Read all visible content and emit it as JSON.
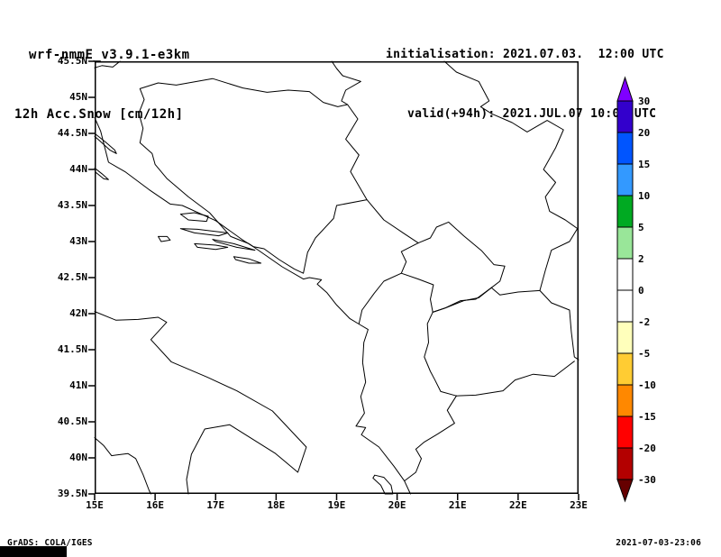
{
  "header": {
    "model": "wrf-nmmE_v3.9.1-e3km",
    "field": "12h Acc.Snow [cm/12h]",
    "init": "initialisation: 2021.07.03.  12:00 UTC",
    "valid": "valid(+94h): 2021.JUL.07 10:00 UTC"
  },
  "footer": {
    "credit": "GrADS: COLA/IGES",
    "timestamp": "2021-07-03-23:06"
  },
  "chart_data": {
    "type": "map",
    "title": "12h Acc.Snow [cm/12h]",
    "field_note": "No snow accumulation anywhere in domain; map area is blank (0 cm/12h) with coastlines and country borders only",
    "lon_range": [
      15,
      23
    ],
    "lat_range": [
      39.5,
      45.5
    ],
    "lat_ticks": [
      "45.5N",
      "45N",
      "44.5N",
      "44N",
      "43.5N",
      "43N",
      "42.5N",
      "42N",
      "41.5N",
      "41N",
      "40.5N",
      "40N",
      "39.5N"
    ],
    "lon_ticks": [
      "15E",
      "16E",
      "17E",
      "18E",
      "19E",
      "20E",
      "21E",
      "22E",
      "23E"
    ],
    "colorbar": {
      "labels": [
        "30",
        "20",
        "15",
        "10",
        "5",
        "2",
        "0",
        "-2",
        "-5",
        "-10",
        "-15",
        "-20",
        "-30"
      ],
      "levels": [
        30,
        20,
        15,
        10,
        5,
        2,
        0,
        -2,
        -5,
        -10,
        -15,
        -20,
        -30
      ],
      "colors": [
        "#7f00ff",
        "#3300cc",
        "#0055ff",
        "#3399ff",
        "#00aa22",
        "#99e699",
        "#ffffff",
        "#ffffff",
        "#ffffbb",
        "#ffcc33",
        "#ff8800",
        "#ff0000",
        "#b30000",
        "#660000"
      ]
    },
    "outlines": {
      "italy_adriatic_coast": [
        [
          15.0,
          42.03
        ],
        [
          15.35,
          41.91
        ],
        [
          15.72,
          41.92
        ],
        [
          16.05,
          41.95
        ],
        [
          16.19,
          41.88
        ],
        [
          15.93,
          41.64
        ],
        [
          16.27,
          41.33
        ],
        [
          16.86,
          41.12
        ],
        [
          17.35,
          40.93
        ],
        [
          17.94,
          40.65
        ],
        [
          18.5,
          40.15
        ],
        [
          18.36,
          39.8
        ],
        [
          17.99,
          40.06
        ],
        [
          17.23,
          40.46
        ],
        [
          16.82,
          40.4
        ],
        [
          16.6,
          40.05
        ],
        [
          16.52,
          39.7
        ],
        [
          16.55,
          39.5
        ]
      ],
      "italy_tyrrhenian_coast": [
        [
          15.0,
          40.28
        ],
        [
          15.15,
          40.17
        ],
        [
          15.28,
          40.03
        ],
        [
          15.55,
          40.06
        ],
        [
          15.68,
          39.99
        ],
        [
          15.8,
          39.77
        ],
        [
          15.9,
          39.55
        ],
        [
          15.93,
          39.5
        ]
      ],
      "east_adriatic_coast": [
        [
          15.0,
          44.72
        ],
        [
          15.1,
          44.53
        ],
        [
          15.23,
          44.1
        ],
        [
          15.5,
          43.97
        ],
        [
          15.9,
          43.72
        ],
        [
          16.25,
          43.52
        ],
        [
          16.45,
          43.5
        ],
        [
          17.0,
          43.29
        ],
        [
          17.45,
          43.02
        ],
        [
          17.62,
          42.93
        ],
        [
          18.1,
          42.65
        ],
        [
          18.45,
          42.48
        ],
        [
          18.55,
          42.5
        ],
        [
          18.75,
          42.47
        ],
        [
          18.68,
          42.41
        ],
        [
          18.84,
          42.29
        ],
        [
          19.0,
          42.12
        ],
        [
          19.22,
          41.93
        ],
        [
          19.38,
          41.85
        ],
        [
          19.52,
          41.78
        ],
        [
          19.45,
          41.6
        ],
        [
          19.43,
          41.32
        ],
        [
          19.48,
          41.05
        ],
        [
          19.4,
          40.85
        ],
        [
          19.46,
          40.62
        ],
        [
          19.32,
          40.44
        ],
        [
          19.48,
          40.42
        ],
        [
          19.41,
          40.32
        ],
        [
          19.7,
          40.15
        ],
        [
          19.95,
          39.88
        ],
        [
          20.12,
          39.68
        ],
        [
          20.22,
          39.5
        ]
      ],
      "island_pag": [
        [
          15.0,
          44.5
        ],
        [
          15.18,
          44.38
        ],
        [
          15.33,
          44.27
        ],
        [
          15.36,
          44.22
        ],
        [
          15.25,
          44.27
        ],
        [
          15.08,
          44.4
        ],
        [
          15.0,
          44.46
        ]
      ],
      "island_dugi_otok": [
        [
          15.0,
          44.02
        ],
        [
          15.12,
          43.94
        ],
        [
          15.23,
          43.86
        ],
        [
          15.15,
          43.87
        ],
        [
          15.02,
          43.96
        ]
      ],
      "island_brac": [
        [
          16.42,
          43.38
        ],
        [
          16.65,
          43.4
        ],
        [
          16.88,
          43.35
        ],
        [
          16.85,
          43.28
        ],
        [
          16.55,
          43.3
        ],
        [
          16.42,
          43.38
        ]
      ],
      "island_hvar": [
        [
          16.42,
          43.18
        ],
        [
          16.7,
          43.17
        ],
        [
          17.1,
          43.13
        ],
        [
          17.2,
          43.12
        ],
        [
          17.05,
          43.08
        ],
        [
          16.65,
          43.12
        ],
        [
          16.42,
          43.18
        ]
      ],
      "island_korcula": [
        [
          16.65,
          42.97
        ],
        [
          17.0,
          42.95
        ],
        [
          17.2,
          42.92
        ],
        [
          17.0,
          42.89
        ],
        [
          16.7,
          42.92
        ],
        [
          16.65,
          42.97
        ]
      ],
      "island_vis": [
        [
          16.05,
          43.07
        ],
        [
          16.2,
          43.07
        ],
        [
          16.25,
          43.02
        ],
        [
          16.1,
          43.0
        ],
        [
          16.05,
          43.07
        ]
      ],
      "island_mljet": [
        [
          17.3,
          42.79
        ],
        [
          17.55,
          42.76
        ],
        [
          17.75,
          42.7
        ],
        [
          17.55,
          42.7
        ],
        [
          17.33,
          42.75
        ],
        [
          17.3,
          42.79
        ]
      ],
      "peljesac_peninsula": [
        [
          16.95,
          43.03
        ],
        [
          17.3,
          42.97
        ],
        [
          17.65,
          42.88
        ],
        [
          17.35,
          42.92
        ],
        [
          17.0,
          43.0
        ],
        [
          16.95,
          43.03
        ]
      ],
      "island_corfu": [
        [
          19.63,
          39.76
        ],
        [
          19.78,
          39.73
        ],
        [
          19.9,
          39.62
        ],
        [
          19.93,
          39.5
        ],
        [
          19.8,
          39.5
        ],
        [
          19.73,
          39.62
        ],
        [
          19.6,
          39.72
        ],
        [
          19.63,
          39.76
        ]
      ],
      "border_slovenia_croatia": [
        [
          15.42,
          45.5
        ],
        [
          15.3,
          45.42
        ],
        [
          15.12,
          45.44
        ],
        [
          15.0,
          45.41
        ]
      ],
      "border_croatia_serbia": [
        [
          18.92,
          45.5
        ],
        [
          19.0,
          45.4
        ],
        [
          19.1,
          45.3
        ],
        [
          19.4,
          45.22
        ],
        [
          19.15,
          45.1
        ],
        [
          19.08,
          44.95
        ],
        [
          19.18,
          44.9
        ]
      ],
      "border_bosnia": [
        [
          17.62,
          42.93
        ],
        [
          17.55,
          42.97
        ],
        [
          17.25,
          43.07
        ],
        [
          16.9,
          43.4
        ],
        [
          16.55,
          43.62
        ],
        [
          16.2,
          43.87
        ],
        [
          16.0,
          44.07
        ],
        [
          15.95,
          44.22
        ],
        [
          15.75,
          44.37
        ],
        [
          15.8,
          44.57
        ],
        [
          15.73,
          44.78
        ],
        [
          15.82,
          44.97
        ],
        [
          15.75,
          45.12
        ],
        [
          16.05,
          45.2
        ],
        [
          16.35,
          45.17
        ],
        [
          16.55,
          45.2
        ],
        [
          16.95,
          45.26
        ],
        [
          17.45,
          45.13
        ],
        [
          17.85,
          45.07
        ],
        [
          18.2,
          45.1
        ],
        [
          18.55,
          45.08
        ],
        [
          18.78,
          44.93
        ],
        [
          19.02,
          44.87
        ],
        [
          19.18,
          44.9
        ],
        [
          19.35,
          44.7
        ],
        [
          19.15,
          44.42
        ],
        [
          19.37,
          44.2
        ],
        [
          19.23,
          43.97
        ],
        [
          19.5,
          43.58
        ],
        [
          19.0,
          43.5
        ],
        [
          18.95,
          43.32
        ],
        [
          18.65,
          43.05
        ],
        [
          18.52,
          42.85
        ],
        [
          18.45,
          42.56
        ],
        [
          18.3,
          42.62
        ],
        [
          18.05,
          42.75
        ],
        [
          17.8,
          42.9
        ],
        [
          17.62,
          42.93
        ]
      ],
      "border_serbia_east": [
        [
          20.78,
          45.5
        ],
        [
          20.98,
          45.35
        ],
        [
          21.35,
          45.22
        ],
        [
          21.52,
          44.95
        ],
        [
          21.38,
          44.87
        ],
        [
          21.57,
          44.77
        ],
        [
          21.9,
          44.65
        ],
        [
          22.15,
          44.52
        ],
        [
          22.48,
          44.68
        ],
        [
          22.75,
          44.55
        ],
        [
          22.62,
          44.3
        ],
        [
          22.42,
          44.0
        ],
        [
          22.62,
          43.82
        ],
        [
          22.45,
          43.62
        ],
        [
          22.52,
          43.42
        ],
        [
          22.78,
          43.3
        ],
        [
          22.98,
          43.18
        ],
        [
          22.85,
          43.0
        ],
        [
          22.55,
          42.88
        ],
        [
          22.45,
          42.6
        ],
        [
          22.36,
          42.32
        ],
        [
          22.55,
          42.15
        ],
        [
          22.85,
          42.05
        ],
        [
          22.88,
          41.75
        ],
        [
          22.93,
          41.4
        ],
        [
          23.0,
          41.36
        ]
      ],
      "border_macedonia_north": [
        [
          22.36,
          42.32
        ],
        [
          22.0,
          42.3
        ],
        [
          21.7,
          42.26
        ],
        [
          21.56,
          42.36
        ],
        [
          21.35,
          42.22
        ],
        [
          21.1,
          42.18
        ],
        [
          20.8,
          42.08
        ],
        [
          20.59,
          42.02
        ]
      ],
      "border_macedonia_albania": [
        [
          20.59,
          42.02
        ],
        [
          20.5,
          41.86
        ],
        [
          20.52,
          41.6
        ],
        [
          20.45,
          41.4
        ],
        [
          20.55,
          41.2
        ],
        [
          20.62,
          41.09
        ],
        [
          20.72,
          40.92
        ],
        [
          20.98,
          40.86
        ]
      ],
      "border_macedonia_greece": [
        [
          20.98,
          40.86
        ],
        [
          21.3,
          40.87
        ],
        [
          21.75,
          40.93
        ],
        [
          21.95,
          41.08
        ],
        [
          22.25,
          41.16
        ],
        [
          22.6,
          41.13
        ],
        [
          22.93,
          41.34
        ]
      ],
      "border_albania_greece": [
        [
          20.98,
          40.86
        ],
        [
          20.83,
          40.66
        ],
        [
          20.95,
          40.48
        ],
        [
          20.67,
          40.33
        ],
        [
          20.45,
          40.22
        ],
        [
          20.31,
          40.12
        ],
        [
          20.4,
          39.99
        ],
        [
          20.31,
          39.8
        ],
        [
          20.12,
          39.68
        ]
      ],
      "border_kosovo": [
        [
          20.07,
          42.86
        ],
        [
          20.35,
          42.98
        ],
        [
          20.55,
          43.05
        ],
        [
          20.65,
          43.2
        ],
        [
          20.85,
          43.27
        ],
        [
          21.1,
          43.08
        ],
        [
          21.4,
          42.87
        ],
        [
          21.6,
          42.68
        ],
        [
          21.78,
          42.66
        ],
        [
          21.7,
          42.45
        ],
        [
          21.56,
          42.36
        ],
        [
          21.3,
          42.2
        ],
        [
          21.05,
          42.18
        ],
        [
          20.8,
          42.08
        ],
        [
          20.59,
          42.02
        ],
        [
          20.55,
          42.2
        ],
        [
          20.6,
          42.4
        ],
        [
          20.35,
          42.48
        ],
        [
          20.07,
          42.56
        ],
        [
          20.15,
          42.72
        ],
        [
          20.07,
          42.86
        ]
      ],
      "border_montenegro_serbia": [
        [
          19.5,
          43.58
        ],
        [
          19.78,
          43.3
        ],
        [
          20.1,
          43.12
        ],
        [
          20.35,
          42.98
        ]
      ],
      "border_montenegro_albania": [
        [
          19.37,
          41.86
        ],
        [
          19.42,
          42.05
        ],
        [
          19.62,
          42.28
        ],
        [
          19.78,
          42.45
        ],
        [
          20.07,
          42.56
        ]
      ]
    }
  }
}
